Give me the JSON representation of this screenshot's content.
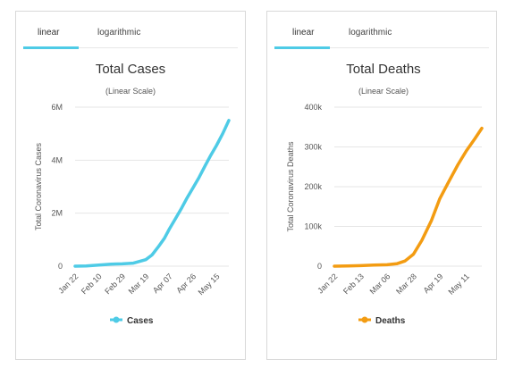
{
  "panels": [
    {
      "tabs": {
        "linear": "linear",
        "logarithmic": "logarithmic",
        "active": "linear"
      },
      "accent": "#4ecbe6"
    },
    {
      "tabs": {
        "linear": "linear",
        "logarithmic": "logarithmic",
        "active": "linear"
      },
      "accent": "#4ecbe6"
    }
  ],
  "chart_data": [
    {
      "type": "line",
      "title": "Total Cases",
      "subtitle": "(Linear Scale)",
      "ylabel": "Total Coronavirus Cases",
      "xlabel": "",
      "ylim": [
        0,
        6000000
      ],
      "yticks": [
        0,
        2000000,
        4000000,
        6000000
      ],
      "ytick_labels": [
        "0",
        "2M",
        "4M",
        "6M"
      ],
      "xticks": [
        "Jan 22",
        "Feb 10",
        "Feb 29",
        "Mar 19",
        "Apr 07",
        "Apr 26",
        "May 15"
      ],
      "grid": true,
      "legend": "bottom",
      "series": [
        {
          "name": "Cases",
          "color": "#4ecbe6",
          "x": [
            "Jan 22",
            "Jan 31",
            "Feb 10",
            "Feb 20",
            "Feb 29",
            "Mar 09",
            "Mar 19",
            "Mar 24",
            "Mar 29",
            "Apr 03",
            "Apr 07",
            "Apr 12",
            "Apr 17",
            "Apr 21",
            "Apr 26",
            "May 01",
            "May 06",
            "May 10",
            "May 15",
            "May 20",
            "May 25"
          ],
          "values": [
            600,
            10000,
            40000,
            76000,
            87000,
            115000,
            245000,
            420000,
            720000,
            1050000,
            1400000,
            1800000,
            2200000,
            2550000,
            2950000,
            3350000,
            3800000,
            4150000,
            4550000,
            5000000,
            5500000
          ]
        }
      ]
    },
    {
      "type": "line",
      "title": "Total Deaths",
      "subtitle": "(Linear Scale)",
      "ylabel": "Total Coronavirus Deaths",
      "xlabel": "",
      "ylim": [
        0,
        400000
      ],
      "yticks": [
        0,
        100000,
        200000,
        300000,
        400000
      ],
      "ytick_labels": [
        "0",
        "100k",
        "200k",
        "300k",
        "400k"
      ],
      "xticks": [
        "Jan 22",
        "Feb 13",
        "Mar 06",
        "Mar 28",
        "Apr 19",
        "May 11"
      ],
      "grid": true,
      "legend": "bottom",
      "series": [
        {
          "name": "Deaths",
          "color": "#f39c12",
          "x": [
            "Jan 22",
            "Feb 02",
            "Feb 13",
            "Feb 24",
            "Mar 06",
            "Mar 14",
            "Mar 21",
            "Mar 28",
            "Apr 04",
            "Apr 12",
            "Apr 19",
            "Apr 26",
            "May 04",
            "May 11",
            "May 18",
            "May 24"
          ],
          "values": [
            17,
            360,
            1400,
            2700,
            3500,
            6000,
            13000,
            30000,
            65000,
            115000,
            170000,
            210000,
            255000,
            290000,
            320000,
            347000
          ]
        }
      ]
    }
  ]
}
